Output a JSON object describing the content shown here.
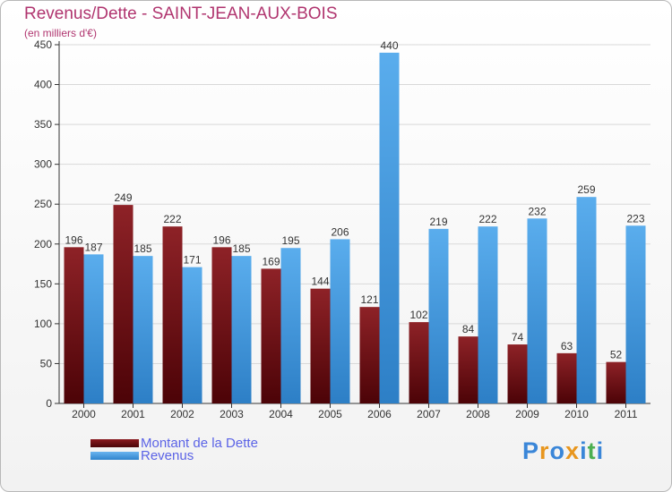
{
  "chart_data": {
    "type": "bar",
    "title": "Revenus/Dette - SAINT-JEAN-AUX-BOIS",
    "subtitle": "(en milliers d'€)",
    "categories": [
      "2000",
      "2001",
      "2002",
      "2003",
      "2004",
      "2005",
      "2006",
      "2007",
      "2008",
      "2009",
      "2010",
      "2011"
    ],
    "series": [
      {
        "name": "Montant de la Dette",
        "color": "#6e0b10",
        "values": [
          196,
          249,
          222,
          196,
          169,
          144,
          121,
          102,
          84,
          74,
          63,
          52
        ]
      },
      {
        "name": "Revenus",
        "color": "#4a9ee0",
        "values": [
          187,
          185,
          171,
          185,
          195,
          206,
          440,
          219,
          222,
          232,
          259,
          223
        ]
      }
    ],
    "ylim": [
      0,
      450
    ],
    "yticks": [
      0,
      50,
      100,
      150,
      200,
      250,
      300,
      350,
      400,
      450
    ],
    "grid": true,
    "legend_position": "bottom-left"
  },
  "logo": {
    "text": "Proxiti",
    "colors": [
      "#3a86d8",
      "#e8961e",
      "#3a86d8",
      "#e8961e",
      "#3a86d8",
      "#4caf50",
      "#3a86d8"
    ]
  }
}
